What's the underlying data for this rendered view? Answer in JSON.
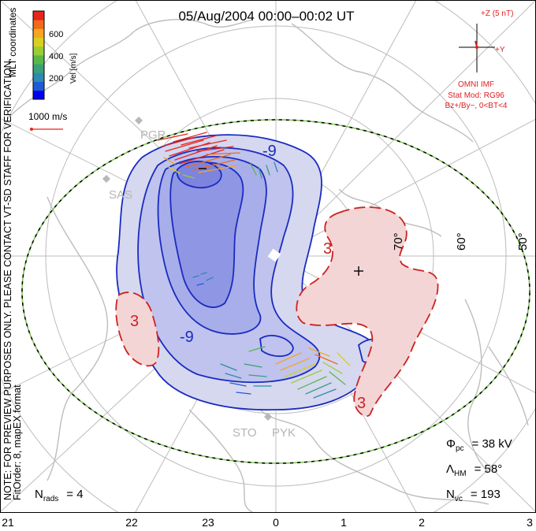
{
  "title": "05/Aug/2004 00:00–00:02 UT",
  "colorbar": {
    "label": "Vel [m/s]",
    "ticks": [
      "600",
      "400",
      "200"
    ],
    "colors": [
      "#0000ee",
      "#1e5bd6",
      "#2f8ab0",
      "#3aa07a",
      "#5ab84a",
      "#9acd32",
      "#d8d020",
      "#f5a623",
      "#f06a1a",
      "#e8251a"
    ]
  },
  "coords_label": "MLT coordinates",
  "vector_scale_label": "1000 m/s",
  "side_note_1": "NOTE: FOR PREVIEW PURPOSES ONLY. PLEASE CONTACT VT-SD STAFF FOR VERIFICATION.",
  "side_note_2": "FitOrder: 8, mapEX format",
  "imf": {
    "z_label": "+Z (5 nT)",
    "y_label": "+Y",
    "source": "OMNI IMF",
    "model": "Stat Mod: RG96",
    "conditions": "Bz+/By−, 0<BT<4"
  },
  "latitude_labels": [
    "70°",
    "60°",
    "50°"
  ],
  "contour_labels": {
    "neg_1": "-9",
    "neg_2": "-9",
    "pos_1": "3",
    "pos_2": "3",
    "pos_3": "3"
  },
  "radar_labels": [
    "PGR",
    "SAS",
    "STO",
    "PYK"
  ],
  "stats": {
    "phi_pc": {
      "symbol": "Φ",
      "sub": "pc",
      "value": "= 38 kV"
    },
    "lambda_hm": {
      "symbol": "Λ",
      "sub": "HM",
      "value": "= 58°"
    },
    "n_vc": {
      "symbol": "N",
      "sub": "vc",
      "value": "= 193"
    },
    "n_rads": {
      "symbol": "N",
      "sub": "rads",
      "value": "= 4"
    }
  },
  "mlt_labels": [
    "21",
    "22",
    "23",
    "0",
    "1",
    "2",
    "3"
  ],
  "colors": {
    "negative_contour": "#1a2bbf",
    "negative_fill": "#c9cdf0",
    "positive_contour": "#cc2222",
    "positive_fill": "#f3d2d2",
    "imf_red": "#e02020",
    "land": "#bdbdbd"
  }
}
